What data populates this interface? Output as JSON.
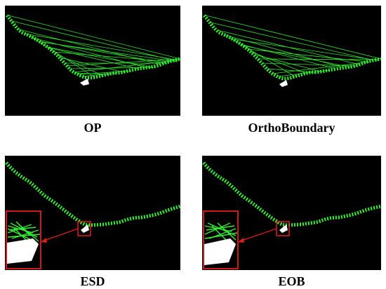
{
  "panels": [
    {
      "id": "op",
      "caption": "OP"
    },
    {
      "id": "orthoboundary",
      "caption": "OrthoBoundary"
    },
    {
      "id": "esd",
      "caption": "ESD"
    },
    {
      "id": "eob",
      "caption": "EOB"
    }
  ],
  "colors": {
    "background": "#000000",
    "contour": "#33ee33",
    "inset_frame": "#e21b1b",
    "arrow": "#e21b1b",
    "object": "#ffffff"
  }
}
